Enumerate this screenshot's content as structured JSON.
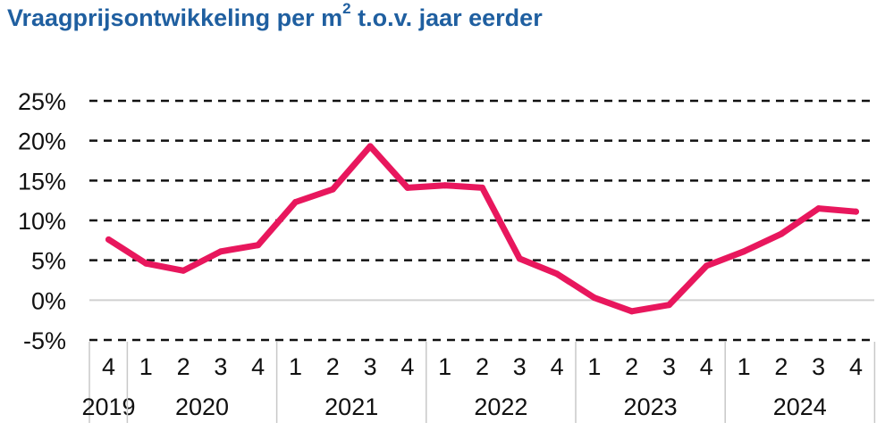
{
  "chart_data": {
    "type": "line",
    "title_main": "Vraagprijsontwikkeling per m",
    "title_sup": "2",
    "title_rest": " t.o.v. jaar eerder",
    "ylim": [
      -5,
      25
    ],
    "yticks": [
      -5,
      0,
      5,
      10,
      15,
      20,
      25
    ],
    "ytick_labels": [
      "-5%",
      "0%",
      "5%",
      "10%",
      "15%",
      "20%",
      "25%"
    ],
    "grid": "dashed horizontal",
    "quarters": [
      "4",
      "1",
      "2",
      "3",
      "4",
      "1",
      "2",
      "3",
      "4",
      "1",
      "2",
      "3",
      "4",
      "1",
      "2",
      "3",
      "4",
      "1",
      "2",
      "3",
      "4"
    ],
    "years": [
      {
        "label": "2019",
        "span": 1
      },
      {
        "label": "2020",
        "span": 4
      },
      {
        "label": "2021",
        "span": 4
      },
      {
        "label": "2022",
        "span": 4
      },
      {
        "label": "2023",
        "span": 4
      },
      {
        "label": "2024",
        "span": 4
      }
    ],
    "series": [
      {
        "color": "#e8175d",
        "values": [
          7.6,
          4.6,
          3.7,
          6.1,
          6.9,
          12.3,
          13.9,
          19.3,
          14.1,
          14.4,
          14.1,
          5.2,
          3.3,
          0.3,
          -1.4,
          -0.6,
          4.3,
          6.1,
          8.3,
          11.5,
          11.1
        ]
      }
    ]
  }
}
